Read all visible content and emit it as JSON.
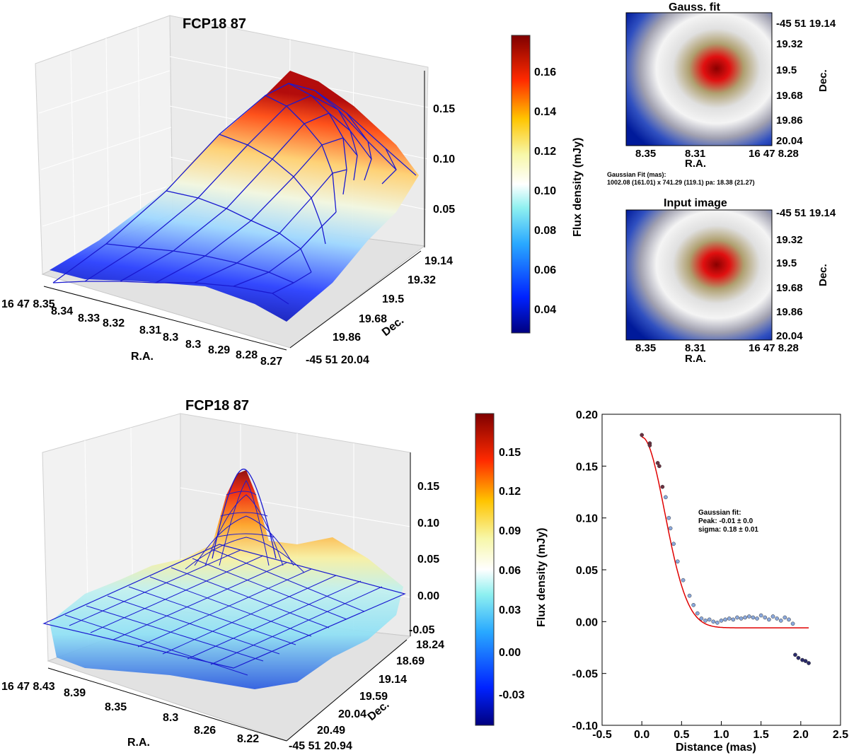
{
  "palette": {
    "c0": "#00007f",
    "c1": "#0050ff",
    "c2": "#29ffce",
    "c3": "#ffffff",
    "c4": "#ffc400",
    "c5": "#ff2a00",
    "c6": "#7f0000",
    "wire": "#1a1ad0",
    "fit_line": "#e00000",
    "dots": "#8aa8dc"
  },
  "panel1": {
    "title": "FCP18 87",
    "z_ticks": [
      "0.05",
      "0.10",
      "0.15"
    ],
    "ra_ticks": [
      "16 47 8.35",
      "8.34",
      "8.33",
      "8.32",
      "8.31",
      "8.3",
      "8.3",
      "8.29",
      "8.28",
      "8.27"
    ],
    "dec_ticks": [
      "19.14",
      "19.32",
      "19.5",
      "19.68",
      "19.86",
      "-45 51 20.04"
    ],
    "xlabel": "R.A.",
    "ylabel": "Dec."
  },
  "colorbar1": {
    "ticks": [
      "0.16",
      "0.14",
      "0.12",
      "0.10",
      "0.08",
      "0.06",
      "0.04"
    ],
    "label": "Flux density (mJy)"
  },
  "panel_gauss": {
    "title": "Gauss. fit",
    "ra_ticks": [
      "8.35",
      "8.31",
      "16 47 8.28"
    ],
    "dec_ticks": [
      "-45 51 19.14",
      "19.32",
      "19.5",
      "19.68",
      "19.86",
      "20.04"
    ],
    "xlabel": "R.A.",
    "ylabel": "Dec.",
    "note_line1": "Gaussian Fit (mas):",
    "note_line2": "1002.08 (161.01) x 741.29 (119.1) pa: 18.38 (21.27)"
  },
  "panel_input": {
    "title": "Input image",
    "ra_ticks": [
      "8.35",
      "8.31",
      "16 47 8.28"
    ],
    "dec_ticks": [
      "-45 51 19.14",
      "19.32",
      "19.5",
      "19.68",
      "19.86",
      "20.04"
    ],
    "xlabel": "R.A.",
    "ylabel": "Dec."
  },
  "panel2": {
    "title": "FCP18 87",
    "z_ticks": [
      "-0.05",
      "0.00",
      "0.05",
      "0.10",
      "0.15"
    ],
    "ra_ticks": [
      "16 47 8.43",
      "8.39",
      "8.35",
      "8.3",
      "8.26",
      "8.22"
    ],
    "dec_ticks": [
      "18.24",
      "18.69",
      "19.14",
      "19.59",
      "20.04",
      "20.49",
      "-45 51 20.94"
    ],
    "xlabel": "R.A.",
    "ylabel": "Dec."
  },
  "colorbar2": {
    "ticks": [
      "0.15",
      "0.12",
      "0.09",
      "0.06",
      "0.03",
      "0.00",
      "-0.03"
    ],
    "label": "Flux density (mJy)"
  },
  "chart_data": [
    {
      "type": "surface",
      "title": "FCP18 87",
      "zlabel": "",
      "zlim": [
        0.025,
        0.18
      ],
      "peak": 0.178
    },
    {
      "type": "heatmap",
      "title": "Gauss. fit"
    },
    {
      "type": "heatmap",
      "title": "Input image"
    },
    {
      "type": "surface",
      "title": "FCP18 87",
      "zlim": [
        -0.055,
        0.18
      ],
      "peak": 0.178
    },
    {
      "type": "scatter",
      "xlabel": "Distance (mas)",
      "ylabel": "",
      "xlim": [
        -0.5,
        2.5
      ],
      "ylim": [
        -0.1,
        0.2
      ],
      "x_ticks": [
        "-0.5",
        "0.0",
        "0.5",
        "1.0",
        "1.5",
        "2.0",
        "2.5"
      ],
      "y_ticks": [
        "-0.10",
        "-0.05",
        "0.00",
        "0.05",
        "0.10",
        "0.15",
        "0.20"
      ],
      "annotation": [
        "Gaussian fit:",
        "Peak: -0.01 ± 0.0",
        "sigma: 0.18 ± 0.01"
      ],
      "points": [
        [
          0.0,
          0.18
        ],
        [
          0.1,
          0.172
        ],
        [
          0.1,
          0.17
        ],
        [
          0.2,
          0.153
        ],
        [
          0.22,
          0.15
        ],
        [
          0.26,
          0.13
        ],
        [
          0.3,
          0.12
        ],
        [
          0.34,
          0.1
        ],
        [
          0.36,
          0.09
        ],
        [
          0.4,
          0.075
        ],
        [
          0.45,
          0.058
        ],
        [
          0.52,
          0.04
        ],
        [
          0.6,
          0.025
        ],
        [
          0.65,
          0.016
        ],
        [
          0.7,
          0.008
        ],
        [
          0.75,
          0.003
        ],
        [
          0.8,
          0.001
        ],
        [
          0.85,
          0.002
        ],
        [
          0.9,
          0.0
        ],
        [
          0.95,
          -0.001
        ],
        [
          1.0,
          0.001
        ],
        [
          1.05,
          0.002
        ],
        [
          1.1,
          0.003
        ],
        [
          1.15,
          0.002
        ],
        [
          1.2,
          0.004
        ],
        [
          1.25,
          0.003
        ],
        [
          1.3,
          0.004
        ],
        [
          1.35,
          0.005
        ],
        [
          1.4,
          0.004
        ],
        [
          1.45,
          0.003
        ],
        [
          1.5,
          0.006
        ],
        [
          1.55,
          0.004
        ],
        [
          1.6,
          0.002
        ],
        [
          1.65,
          0.005
        ],
        [
          1.7,
          0.003
        ],
        [
          1.75,
          0.001
        ],
        [
          1.8,
          0.004
        ],
        [
          1.85,
          0.002
        ],
        [
          1.9,
          -0.002
        ],
        [
          1.93,
          -0.032
        ],
        [
          1.97,
          -0.035
        ],
        [
          2.02,
          -0.037
        ],
        [
          2.06,
          -0.038
        ],
        [
          2.1,
          -0.04
        ]
      ],
      "fit": {
        "peak": 0.178,
        "sigma": 0.18,
        "offset": -0.006
      }
    }
  ]
}
